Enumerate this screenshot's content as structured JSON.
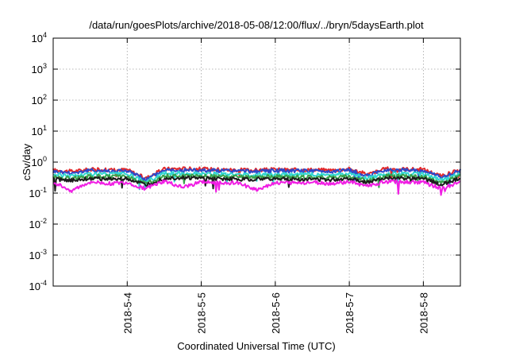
{
  "chart_data": {
    "type": "line",
    "title": "/data/run/goesPlots/archive/2018-05-08/12:00/flux/../bryn/5daysEarth.plot",
    "xlabel": "Coordinated Universal Time (UTC)",
    "ylabel": "cSv/day",
    "yscale": "log",
    "ylim": [
      0.0001,
      10000
    ],
    "xlim": [
      "2018-05-03 00:00",
      "2018-05-08 12:00"
    ],
    "grid": true,
    "legend": "none",
    "y_ticks": [
      {
        "value": 0.0001,
        "base": "10",
        "exp": "-4"
      },
      {
        "value": 0.001,
        "base": "10",
        "exp": "-3"
      },
      {
        "value": 0.01,
        "base": "10",
        "exp": "-2"
      },
      {
        "value": 0.1,
        "base": "10",
        "exp": "-1"
      },
      {
        "value": 1,
        "base": "10",
        "exp": "0"
      },
      {
        "value": 10,
        "base": "10",
        "exp": "1"
      },
      {
        "value": 100,
        "base": "10",
        "exp": "2"
      },
      {
        "value": 1000,
        "base": "10",
        "exp": "3"
      },
      {
        "value": 10000,
        "base": "10",
        "exp": "4"
      }
    ],
    "x_ticks": [
      {
        "value": "2018-05-04 00:00",
        "label": "2018-5-4"
      },
      {
        "value": "2018-05-05 00:00",
        "label": "2018-5-5"
      },
      {
        "value": "2018-05-06 00:00",
        "label": "2018-5-6"
      },
      {
        "value": "2018-05-07 00:00",
        "label": "2018-5-7"
      },
      {
        "value": "2018-05-08 00:00",
        "label": "2018-5-8"
      }
    ],
    "x": [
      "2018-05-03 00:00",
      "2018-05-03 06:00",
      "2018-05-03 12:00",
      "2018-05-03 18:00",
      "2018-05-04 00:00",
      "2018-05-04 06:00",
      "2018-05-04 12:00",
      "2018-05-04 18:00",
      "2018-05-05 00:00",
      "2018-05-05 06:00",
      "2018-05-05 12:00",
      "2018-05-05 18:00",
      "2018-05-06 00:00",
      "2018-05-06 06:00",
      "2018-05-06 12:00",
      "2018-05-06 18:00",
      "2018-05-07 00:00",
      "2018-05-07 06:00",
      "2018-05-07 12:00",
      "2018-05-07 18:00",
      "2018-05-08 00:00",
      "2018-05-08 06:00",
      "2018-05-08 12:00"
    ],
    "series": [
      {
        "color": "#e3282a",
        "values": [
          0.55,
          0.5,
          0.58,
          0.56,
          0.57,
          0.3,
          0.6,
          0.62,
          0.6,
          0.58,
          0.56,
          0.55,
          0.58,
          0.56,
          0.57,
          0.55,
          0.6,
          0.4,
          0.62,
          0.6,
          0.58,
          0.35,
          0.6
        ]
      },
      {
        "color": "#2f49c9",
        "values": [
          0.5,
          0.45,
          0.54,
          0.52,
          0.53,
          0.27,
          0.56,
          0.57,
          0.55,
          0.53,
          0.52,
          0.5,
          0.53,
          0.52,
          0.52,
          0.5,
          0.55,
          0.36,
          0.57,
          0.55,
          0.53,
          0.31,
          0.55
        ]
      },
      {
        "color": "#31d7d2",
        "values": [
          0.4,
          0.36,
          0.42,
          0.41,
          0.41,
          0.23,
          0.43,
          0.44,
          0.42,
          0.41,
          0.4,
          0.39,
          0.41,
          0.4,
          0.4,
          0.39,
          0.42,
          0.3,
          0.43,
          0.42,
          0.41,
          0.26,
          0.42
        ]
      },
      {
        "color": "#37a14a",
        "values": [
          0.33,
          0.3,
          0.35,
          0.34,
          0.34,
          0.2,
          0.36,
          0.36,
          0.35,
          0.34,
          0.33,
          0.33,
          0.34,
          0.33,
          0.33,
          0.32,
          0.35,
          0.25,
          0.36,
          0.35,
          0.34,
          0.22,
          0.35
        ]
      },
      {
        "color": "#1c1c1c",
        "values": [
          0.28,
          0.26,
          0.3,
          0.29,
          0.29,
          0.18,
          0.3,
          0.31,
          0.3,
          0.29,
          0.28,
          0.28,
          0.29,
          0.28,
          0.28,
          0.27,
          0.3,
          0.22,
          0.31,
          0.3,
          0.29,
          0.19,
          0.3
        ]
      },
      {
        "color": "#f01ee3",
        "values": [
          0.22,
          0.12,
          0.23,
          0.2,
          0.22,
          0.14,
          0.24,
          0.15,
          0.23,
          0.22,
          0.21,
          0.13,
          0.22,
          0.21,
          0.22,
          0.2,
          0.23,
          0.17,
          0.24,
          0.23,
          0.22,
          0.14,
          0.23
        ]
      }
    ]
  }
}
